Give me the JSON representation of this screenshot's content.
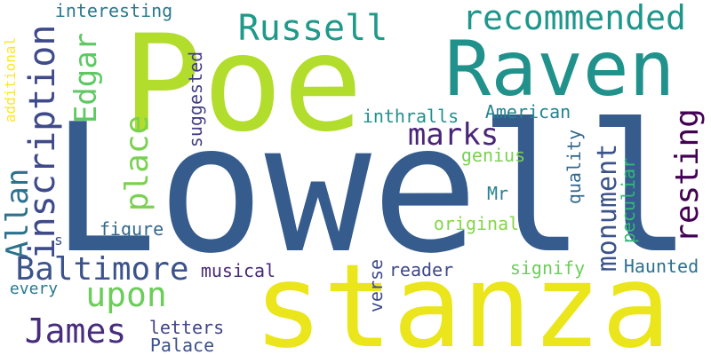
{
  "words": [
    {
      "text": "Lowell",
      "color": "#365c8d",
      "orientation": "horizontal"
    },
    {
      "text": "Poe",
      "color": "#b2dd2c",
      "orientation": "horizontal"
    },
    {
      "text": "stanza",
      "color": "#ebe51b",
      "orientation": "horizontal"
    },
    {
      "text": "Raven",
      "color": "#21918c",
      "orientation": "horizontal"
    },
    {
      "text": "Russell",
      "color": "#1f9a8a",
      "orientation": "horizontal"
    },
    {
      "text": "recommended",
      "color": "#1f968b",
      "orientation": "horizontal"
    },
    {
      "text": "inscription",
      "color": "#3e4a89",
      "orientation": "vertical"
    },
    {
      "text": "Edgar",
      "color": "#5ec962",
      "orientation": "vertical"
    },
    {
      "text": "Allan",
      "color": "#2c718e",
      "orientation": "vertical"
    },
    {
      "text": "place",
      "color": "#7ad151",
      "orientation": "vertical"
    },
    {
      "text": "Baltimore",
      "color": "#3b528b",
      "orientation": "horizontal"
    },
    {
      "text": "upon",
      "color": "#6ccd5a",
      "orientation": "horizontal"
    },
    {
      "text": "James",
      "color": "#472d7b",
      "orientation": "horizontal"
    },
    {
      "text": "marks",
      "color": "#482576",
      "orientation": "horizontal"
    },
    {
      "text": "monument",
      "color": "#3b528b",
      "orientation": "vertical"
    },
    {
      "text": "resting",
      "color": "#440154",
      "orientation": "vertical"
    },
    {
      "text": "interesting",
      "color": "#2a788e",
      "orientation": "horizontal"
    },
    {
      "text": "additional",
      "color": "#fde725",
      "orientation": "vertical"
    },
    {
      "text": "suggested",
      "color": "#433e85",
      "orientation": "vertical"
    },
    {
      "text": "inthralls",
      "color": "#21918c",
      "orientation": "horizontal"
    },
    {
      "text": "American",
      "color": "#25838e",
      "orientation": "horizontal"
    },
    {
      "text": "genius",
      "color": "#7ad151",
      "orientation": "horizontal"
    },
    {
      "text": "quality",
      "color": "#31688e",
      "orientation": "vertical"
    },
    {
      "text": "Mr",
      "color": "#26828e",
      "orientation": "horizontal"
    },
    {
      "text": "figure",
      "color": "#31688e",
      "orientation": "horizontal"
    },
    {
      "text": "original",
      "color": "#86d549",
      "orientation": "horizontal"
    },
    {
      "text": "peculiar",
      "color": "#35b779",
      "orientation": "vertical"
    },
    {
      "text": "s",
      "color": "#3b528b",
      "orientation": "horizontal"
    },
    {
      "text": "musical",
      "color": "#482878",
      "orientation": "horizontal"
    },
    {
      "text": "reader",
      "color": "#3e4a89",
      "orientation": "horizontal"
    },
    {
      "text": "signify",
      "color": "#6ccd5a",
      "orientation": "horizontal"
    },
    {
      "text": "Haunted",
      "color": "#2c718e",
      "orientation": "horizontal"
    },
    {
      "text": "verse",
      "color": "#3e4a89",
      "orientation": "vertical"
    },
    {
      "text": "every",
      "color": "#2a788e",
      "orientation": "horizontal"
    },
    {
      "text": "letters",
      "color": "#414487",
      "orientation": "horizontal"
    },
    {
      "text": "Palace",
      "color": "#3b528b",
      "orientation": "horizontal"
    }
  ]
}
